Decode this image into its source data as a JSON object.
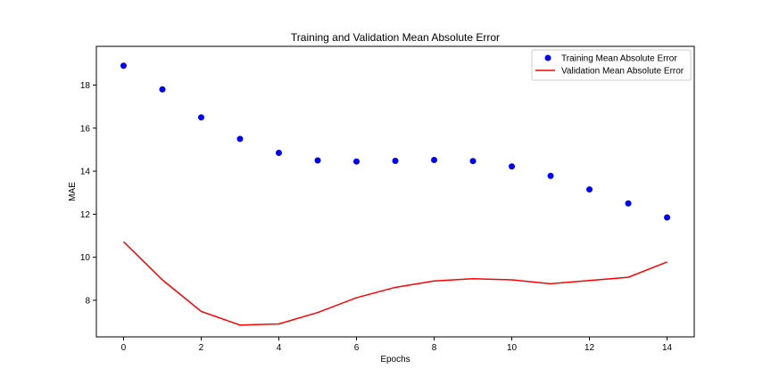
{
  "chart_data": {
    "type": "line",
    "title": "Training and Validation Mean Absolute Error",
    "xlabel": "Epochs",
    "ylabel": "MAE",
    "xlim": [
      -0.7,
      14.7
    ],
    "ylim": [
      6.3,
      19.8
    ],
    "xticks": [
      0,
      2,
      4,
      6,
      8,
      10,
      12,
      14
    ],
    "yticks": [
      8,
      10,
      12,
      14,
      16,
      18
    ],
    "grid": false,
    "legend_position": "top-right",
    "series": [
      {
        "name": "Training Mean Absolute Error",
        "style": "scatter",
        "color": "#0000ff",
        "x": [
          0,
          1,
          2,
          3,
          4,
          5,
          6,
          7,
          8,
          9,
          10,
          11,
          12,
          13,
          14
        ],
        "values": [
          18.9,
          17.8,
          16.5,
          15.5,
          14.85,
          14.5,
          14.45,
          14.48,
          14.52,
          14.47,
          14.22,
          13.78,
          13.15,
          12.5,
          11.85
        ]
      },
      {
        "name": "Validation Mean Absolute Error",
        "style": "line",
        "color": "#ff0000",
        "x": [
          0,
          1,
          2,
          3,
          4,
          5,
          6,
          7,
          8,
          9,
          10,
          11,
          12,
          13,
          14
        ],
        "values": [
          10.72,
          8.95,
          7.48,
          6.85,
          6.9,
          7.43,
          8.12,
          8.6,
          8.9,
          9.0,
          8.95,
          8.77,
          8.92,
          9.07,
          9.78
        ]
      }
    ]
  }
}
